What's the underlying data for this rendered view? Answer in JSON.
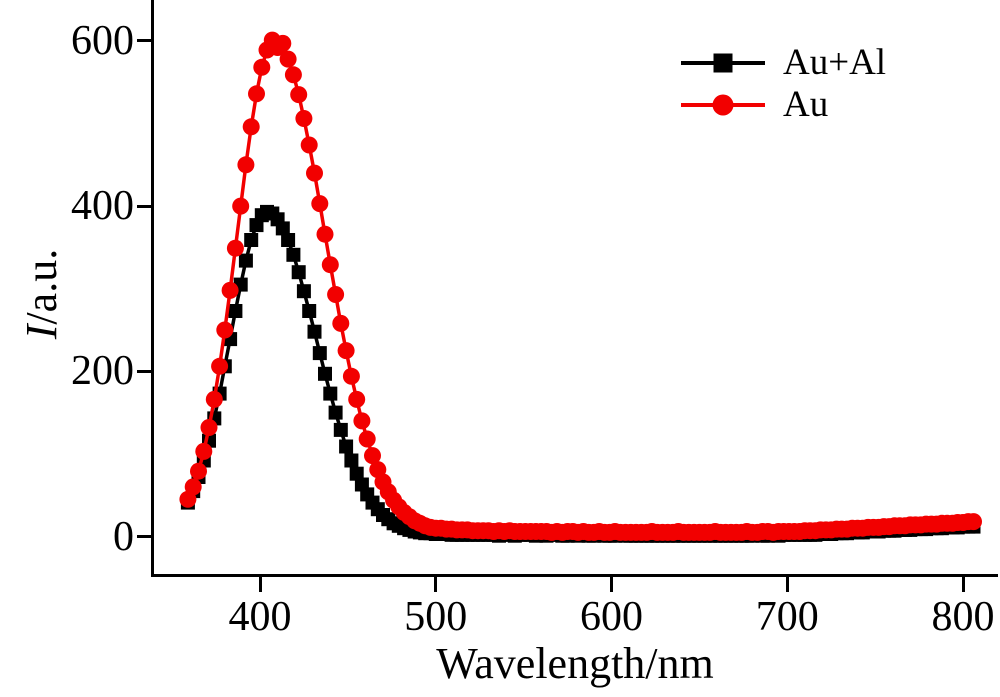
{
  "figure": {
    "x_axis_title": "Wavelength/nm",
    "y_axis_title_italic": "I",
    "y_axis_title_rest": "/a.u."
  },
  "legend": {
    "items": [
      {
        "label": "Au+Al",
        "marker": "square",
        "color": "#000000"
      },
      {
        "label": "Au",
        "marker": "circle",
        "color": "#f20000"
      }
    ]
  },
  "chart_data": {
    "type": "line",
    "title": "",
    "xlabel": "Wavelength/nm",
    "ylabel": "I/a.u.",
    "xlim": [
      338,
      820
    ],
    "ylim": [
      -48,
      650
    ],
    "x_ticks": [
      400,
      500,
      600,
      700,
      800
    ],
    "y_ticks": [
      0,
      200,
      400,
      600
    ],
    "grid": false,
    "legend_position": "upper right",
    "x": [
      359,
      362,
      365,
      368,
      371,
      374,
      377,
      380,
      383,
      386,
      389,
      392,
      395,
      398,
      401,
      404,
      407,
      410,
      413,
      416,
      419,
      422,
      425,
      428,
      431,
      434,
      437,
      440,
      443,
      446,
      449,
      452,
      455,
      458,
      461,
      464,
      467,
      470,
      473,
      476,
      479,
      482,
      485,
      488,
      491,
      494,
      497,
      500,
      503,
      506,
      509,
      512,
      515,
      518,
      521,
      524,
      527,
      530,
      533,
      536,
      539,
      542,
      545,
      548,
      551,
      554,
      557,
      560,
      563,
      566,
      569,
      572,
      575,
      578,
      581,
      584,
      587,
      590,
      593,
      596,
      599,
      602,
      605,
      608,
      611,
      614,
      617,
      620,
      623,
      626,
      629,
      632,
      635,
      638,
      641,
      644,
      647,
      650,
      653,
      656,
      659,
      662,
      665,
      668,
      671,
      674,
      677,
      680,
      683,
      686,
      689,
      692,
      695,
      698,
      701,
      704,
      707,
      710,
      713,
      716,
      719,
      722,
      725,
      728,
      731,
      734,
      737,
      740,
      743,
      746,
      749,
      752,
      755,
      758,
      761,
      764,
      767,
      770,
      773,
      776,
      779,
      782,
      785,
      788,
      791,
      794,
      797,
      800,
      803,
      806
    ],
    "series": [
      {
        "name": "Au+Al",
        "color": "#000000",
        "marker": "square",
        "values": [
          41,
          55,
          72,
          92,
          116,
          143,
          173,
          206,
          239,
          273,
          305,
          334,
          359,
          377,
          389,
          393,
          391,
          384,
          373,
          359,
          341,
          320,
          297,
          273,
          248,
          222,
          197,
          173,
          150,
          129,
          109,
          92,
          76,
          63,
          51,
          41,
          33,
          26,
          21,
          16,
          13,
          10,
          8,
          6,
          5,
          4,
          4,
          3,
          3,
          3,
          2,
          2,
          2,
          2,
          2,
          2,
          2,
          2,
          2,
          1,
          2,
          2,
          1,
          2,
          2,
          2,
          1,
          2,
          1,
          2,
          2,
          1,
          1,
          2,
          1,
          2,
          1,
          1,
          2,
          1,
          1,
          1,
          2,
          1,
          1,
          1,
          1,
          1,
          1,
          1,
          1,
          1,
          1,
          1,
          1,
          1,
          1,
          1,
          1,
          1,
          1,
          1,
          1,
          1,
          1,
          1,
          1,
          1,
          2,
          1,
          1,
          2,
          1,
          2,
          2,
          2,
          2,
          2,
          2,
          2,
          3,
          3,
          3,
          4,
          4,
          4,
          5,
          5,
          5,
          6,
          6,
          6,
          7,
          7,
          7,
          8,
          8,
          8,
          9,
          9,
          9,
          10,
          10,
          10,
          11,
          11,
          11,
          12,
          12,
          12
        ]
      },
      {
        "name": "Au",
        "color": "#f20000",
        "marker": "circle",
        "values": [
          45,
          60,
          79,
          103,
          132,
          166,
          206,
          250,
          298,
          349,
          400,
          450,
          496,
          536,
          568,
          589,
          601,
          592,
          597,
          578,
          559,
          535,
          506,
          474,
          440,
          403,
          366,
          329,
          293,
          258,
          225,
          194,
          166,
          140,
          118,
          98,
          81,
          66,
          54,
          44,
          36,
          29,
          24,
          19,
          16,
          13,
          11,
          10,
          10,
          9,
          9,
          8,
          8,
          8,
          7,
          7,
          7,
          7,
          6,
          7,
          6,
          7,
          6,
          6,
          6,
          6,
          6,
          6,
          6,
          5,
          6,
          5,
          6,
          6,
          5,
          6,
          5,
          5,
          6,
          5,
          5,
          6,
          5,
          5,
          5,
          5,
          5,
          5,
          6,
          5,
          5,
          5,
          5,
          6,
          5,
          5,
          5,
          5,
          5,
          5,
          6,
          5,
          5,
          5,
          5,
          5,
          6,
          5,
          5,
          6,
          6,
          5,
          6,
          6,
          6,
          6,
          6,
          7,
          7,
          7,
          8,
          8,
          8,
          9,
          9,
          9,
          10,
          10,
          10,
          11,
          11,
          11,
          12,
          12,
          13,
          13,
          13,
          14,
          14,
          14,
          15,
          15,
          15,
          16,
          16,
          16,
          17,
          17,
          18,
          18
        ]
      }
    ]
  }
}
